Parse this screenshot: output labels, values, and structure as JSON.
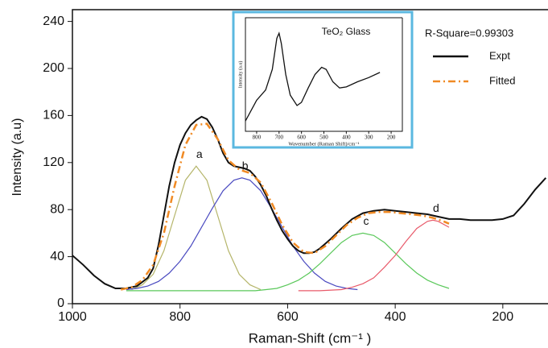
{
  "chart_data": [
    {
      "type": "line",
      "xlabel": "Raman-Shift (cm⁻¹ )",
      "ylabel": "Intensity (a.u)",
      "xlim": [
        1000,
        116
      ],
      "ylim": [
        0,
        250
      ],
      "xticks": [
        1000,
        800,
        600,
        400,
        200
      ],
      "yticks": [
        0,
        40,
        80,
        120,
        160,
        200,
        240
      ],
      "annotation": "R-Square=0.99303",
      "series": [
        {
          "name": "Expt",
          "color": "#111111",
          "style": "solid",
          "x": [
            1000,
            980,
            960,
            940,
            920,
            900,
            880,
            860,
            850,
            840,
            830,
            820,
            810,
            800,
            790,
            780,
            770,
            760,
            750,
            740,
            730,
            720,
            710,
            700,
            690,
            680,
            670,
            660,
            650,
            640,
            630,
            620,
            610,
            600,
            590,
            580,
            570,
            560,
            550,
            540,
            520,
            500,
            480,
            460,
            440,
            420,
            400,
            380,
            360,
            340,
            320,
            300,
            280,
            260,
            240,
            220,
            200,
            180,
            160,
            140,
            120
          ],
          "values": [
            41,
            33,
            24,
            17,
            13,
            13,
            15,
            22,
            30,
            50,
            75,
            100,
            120,
            135,
            145,
            152,
            156,
            159,
            157,
            150,
            140,
            128,
            120,
            117,
            116,
            115,
            113,
            108,
            101,
            92,
            81,
            71,
            62,
            55,
            49,
            45,
            43,
            43,
            44,
            47,
            55,
            64,
            72,
            77,
            79,
            80,
            79,
            78,
            77,
            76,
            74,
            72,
            72,
            71,
            71,
            71,
            72,
            75,
            85,
            97,
            107
          ]
        },
        {
          "name": "Fitted",
          "color": "#f08a24",
          "style": "dashdot",
          "x": [
            910,
            890,
            870,
            850,
            830,
            810,
            790,
            770,
            750,
            730,
            710,
            690,
            670,
            650,
            630,
            610,
            590,
            570,
            550,
            530,
            510,
            490,
            470,
            450,
            430,
            410,
            390,
            370,
            350,
            330,
            310,
            300
          ],
          "values": [
            12,
            14,
            20,
            33,
            60,
            100,
            135,
            152,
            153,
            140,
            122,
            114,
            111,
            103,
            86,
            67,
            52,
            44,
            43,
            49,
            58,
            67,
            73,
            77,
            78,
            78,
            77,
            76,
            75,
            73,
            70,
            68
          ]
        }
      ],
      "components": [
        {
          "name": "a",
          "color": "#b5b56a",
          "x": [
            890,
            870,
            850,
            830,
            810,
            790,
            770,
            750,
            730,
            710,
            690,
            670,
            650
          ],
          "values": [
            12,
            16,
            25,
            45,
            75,
            105,
            117,
            105,
            75,
            45,
            25,
            16,
            12
          ]
        },
        {
          "name": "b",
          "color": "#4a4ac0",
          "x": [
            900,
            880,
            860,
            840,
            820,
            800,
            780,
            760,
            740,
            720,
            700,
            685,
            670,
            650,
            630,
            610,
            590,
            570,
            550,
            530,
            510,
            490,
            470
          ],
          "values": [
            12,
            13,
            15,
            19,
            26,
            36,
            49,
            65,
            81,
            96,
            105,
            107,
            105,
            96,
            81,
            65,
            49,
            36,
            26,
            19,
            15,
            13,
            12
          ]
        },
        {
          "name": "c",
          "color": "#5ac85a",
          "x": [
            900,
            660,
            640,
            620,
            600,
            580,
            560,
            540,
            520,
            500,
            480,
            460,
            440,
            420,
            400,
            380,
            360,
            340,
            320,
            300
          ],
          "values": [
            11,
            11,
            12,
            13,
            16,
            20,
            26,
            34,
            43,
            52,
            58,
            60,
            58,
            52,
            43,
            34,
            26,
            20,
            16,
            13
          ]
        },
        {
          "name": "d",
          "color": "#e85a6a",
          "x": [
            580,
            540,
            500,
            480,
            460,
            440,
            420,
            400,
            380,
            360,
            340,
            330,
            320,
            300
          ],
          "values": [
            11,
            11,
            12,
            14,
            17,
            22,
            31,
            41,
            53,
            64,
            70,
            71,
            70,
            65
          ]
        }
      ]
    },
    {
      "type": "line",
      "title": "TeO₂ Glass",
      "xlabel": "Wavenumber (Raman Shift)/cm⁻¹",
      "ylabel": "Intensity (a.u)",
      "xlim": [
        850,
        150
      ],
      "ylim": [
        0,
        110
      ],
      "xticks": [
        800,
        700,
        600,
        500,
        400,
        300,
        200
      ],
      "series": [
        {
          "color": "#111111",
          "x": [
            850,
            800,
            760,
            730,
            710,
            700,
            690,
            670,
            650,
            620,
            600,
            570,
            540,
            510,
            490,
            460,
            430,
            400,
            350,
            300,
            250
          ],
          "values": [
            10,
            30,
            40,
            60,
            90,
            95,
            85,
            55,
            35,
            25,
            28,
            42,
            55,
            62,
            60,
            48,
            42,
            43,
            48,
            52,
            57
          ]
        }
      ]
    }
  ]
}
